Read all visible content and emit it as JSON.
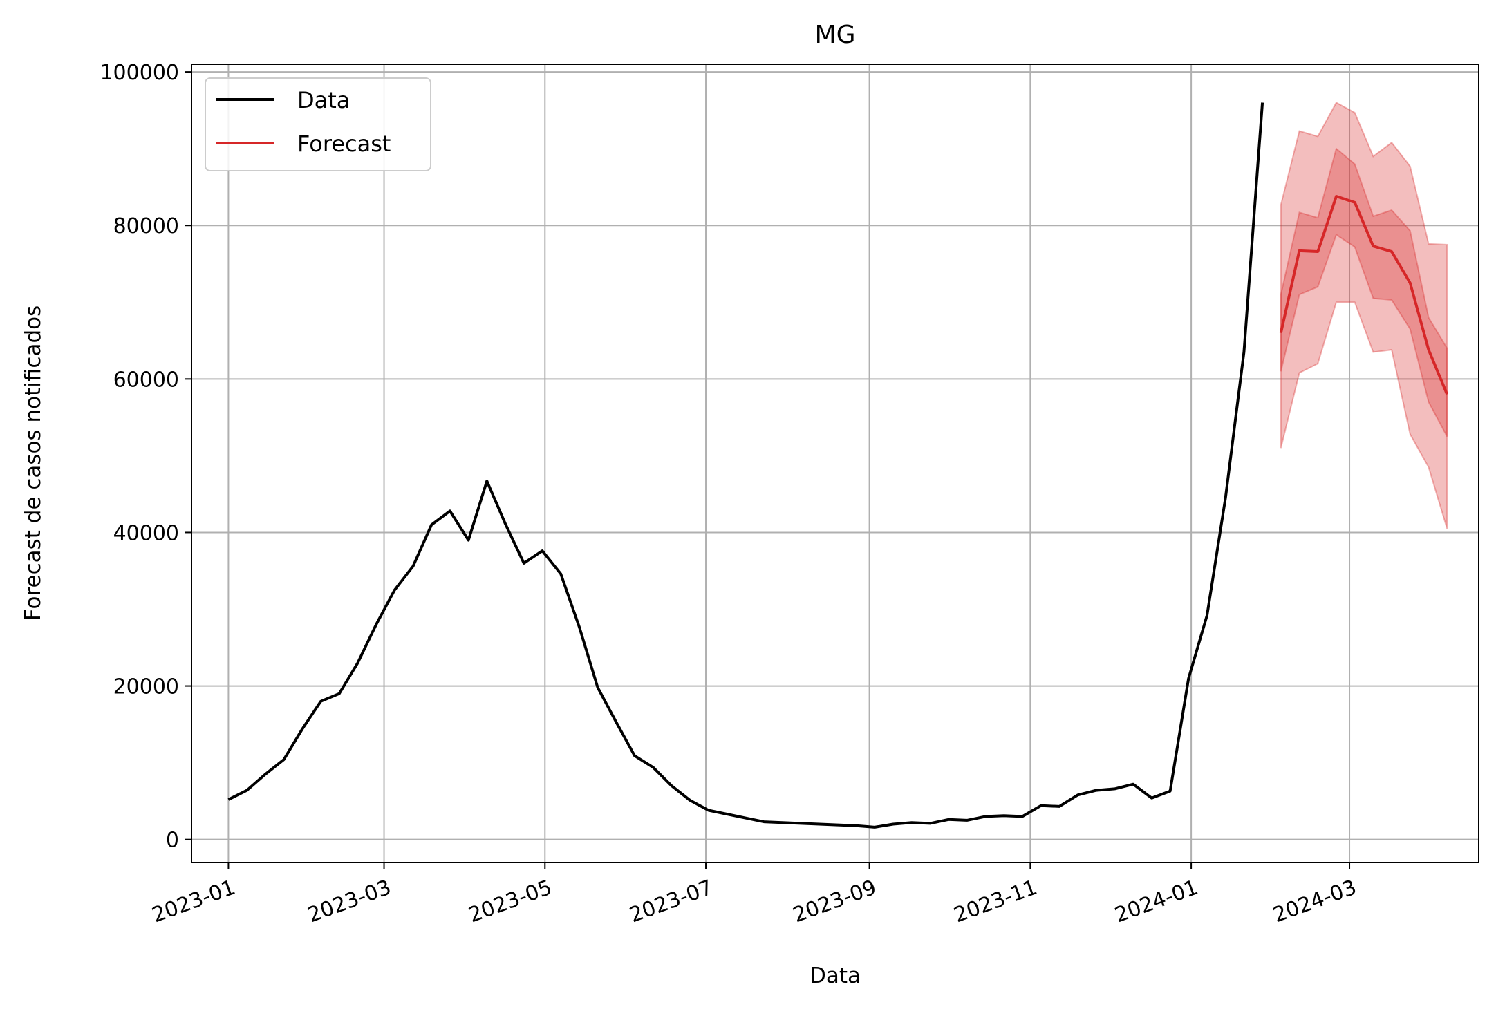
{
  "chart_data": {
    "type": "line",
    "title": "MG",
    "xlabel": "Data",
    "ylabel": "Forecast de casos notificados",
    "grid": true,
    "legend": {
      "position": "upper-left",
      "entries": [
        "Data",
        "Forecast"
      ]
    },
    "xlim": [
      "2022-12-18",
      "2024-04-19"
    ],
    "ylim": [
      -3000,
      101000
    ],
    "x_ticks": [
      "2023-01",
      "2023-03",
      "2023-05",
      "2023-07",
      "2023-09",
      "2023-11",
      "2024-01",
      "2024-03"
    ],
    "y_ticks": [
      0,
      20000,
      40000,
      60000,
      80000,
      100000
    ],
    "colors": {
      "data": "#000000",
      "forecast": "#d62728",
      "band": "#d62728"
    },
    "series": [
      {
        "name": "Data",
        "x": [
          "2023-01-01",
          "2023-01-08",
          "2023-01-15",
          "2023-01-22",
          "2023-01-29",
          "2023-02-05",
          "2023-02-12",
          "2023-02-19",
          "2023-02-26",
          "2023-03-05",
          "2023-03-12",
          "2023-03-19",
          "2023-03-26",
          "2023-04-02",
          "2023-04-09",
          "2023-04-16",
          "2023-04-23",
          "2023-04-30",
          "2023-05-07",
          "2023-05-14",
          "2023-05-21",
          "2023-05-28",
          "2023-06-04",
          "2023-06-11",
          "2023-06-18",
          "2023-06-25",
          "2023-07-02",
          "2023-07-09",
          "2023-07-16",
          "2023-07-23",
          "2023-07-30",
          "2023-08-06",
          "2023-08-13",
          "2023-08-20",
          "2023-08-27",
          "2023-09-03",
          "2023-09-10",
          "2023-09-17",
          "2023-09-24",
          "2023-10-01",
          "2023-10-08",
          "2023-10-15",
          "2023-10-22",
          "2023-10-29",
          "2023-11-05",
          "2023-11-12",
          "2023-11-19",
          "2023-11-26",
          "2023-12-03",
          "2023-12-10",
          "2023-12-17",
          "2023-12-24",
          "2023-12-31",
          "2024-01-07",
          "2024-01-14",
          "2024-01-21",
          "2024-01-28"
        ],
        "y": [
          5200,
          6400,
          8500,
          10400,
          14400,
          18000,
          19000,
          23000,
          28000,
          32500,
          35600,
          41000,
          42800,
          39000,
          46700,
          41100,
          36000,
          37600,
          34600,
          27700,
          19800,
          15300,
          10900,
          9400,
          7000,
          5100,
          3800,
          3300,
          2800,
          2300,
          2200,
          2100,
          2000,
          1900,
          1800,
          1600,
          2000,
          2200,
          2100,
          2600,
          2500,
          3000,
          3100,
          3000,
          4400,
          4300,
          5800,
          6400,
          6600,
          7200,
          5400,
          6300,
          21000,
          29200,
          44500,
          63500,
          96000
        ]
      },
      {
        "name": "Forecast",
        "x": [
          "2024-02-04",
          "2024-02-11",
          "2024-02-18",
          "2024-02-25",
          "2024-03-03",
          "2024-03-10",
          "2024-03-17",
          "2024-03-24",
          "2024-03-31",
          "2024-04-07"
        ],
        "y": [
          66000,
          76700,
          76600,
          83800,
          83000,
          77300,
          76600,
          72500,
          63800,
          58000
        ],
        "band_50": {
          "lower": [
            61000,
            71000,
            72000,
            78800,
            77200,
            70500,
            70300,
            66500,
            57000,
            52500
          ],
          "upper": [
            71000,
            81700,
            81000,
            90000,
            88000,
            81200,
            82000,
            79300,
            68000,
            64000
          ]
        },
        "band_90": {
          "lower": [
            51000,
            60800,
            62000,
            70000,
            70000,
            63500,
            63800,
            52800,
            48500,
            40500
          ],
          "upper": [
            82700,
            92300,
            91600,
            96000,
            94700,
            89000,
            90800,
            87700,
            77600,
            77500
          ]
        }
      }
    ]
  }
}
